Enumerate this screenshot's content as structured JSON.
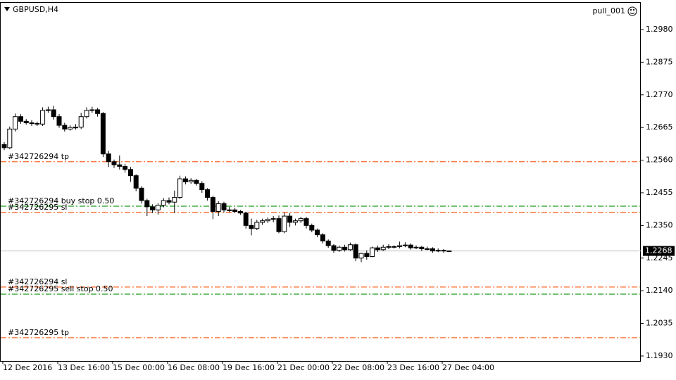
{
  "chart_data": {
    "type": "candlestick",
    "title": "GBPUSD,H4",
    "expert": "pull_001",
    "categories": [
      "12 Dec 2016",
      null,
      null,
      null,
      null,
      null,
      null,
      null,
      null,
      null,
      "13 Dec 16:00",
      null,
      null,
      null,
      null,
      null,
      null,
      null,
      null,
      null,
      "15 Dec 00:00",
      null,
      null,
      null,
      null,
      null,
      null,
      null,
      null,
      null,
      "16 Dec 08:00",
      null,
      null,
      null,
      null,
      null,
      null,
      null,
      null,
      null,
      "19 Dec 16:00",
      null,
      null,
      null,
      null,
      null,
      null,
      null,
      null,
      null,
      "21 Dec 00:00",
      null,
      null,
      null,
      null,
      null,
      null,
      null,
      null,
      null,
      "22 Dec 08:00",
      null,
      null,
      null,
      null,
      null,
      null,
      null,
      null,
      null,
      "23 Dec 16:00",
      null,
      null,
      null,
      null,
      null,
      null,
      null,
      null,
      null,
      "27 Dec 04:00",
      null
    ],
    "open": [
      1.261,
      1.26,
      1.266,
      1.27,
      1.2685,
      1.268,
      1.2678,
      1.2676,
      1.272,
      1.2722,
      1.27,
      1.2672,
      1.266,
      1.2665,
      1.2666,
      1.27,
      1.272,
      1.2722,
      1.271,
      1.258,
      1.2555,
      1.2545,
      1.254,
      1.253,
      1.251,
      1.247,
      1.243,
      1.241,
      1.24,
      1.2415,
      1.243,
      1.2425,
      1.244,
      1.25,
      1.249,
      1.2495,
      1.2485,
      1.2465,
      1.244,
      1.2395,
      1.242,
      1.24,
      1.24,
      1.2395,
      1.239,
      1.235,
      1.234,
      1.236,
      1.2365,
      1.237,
      1.2372,
      1.233,
      1.238,
      1.236,
      1.2365,
      1.2372,
      1.235,
      1.2335,
      1.232,
      1.23,
      1.2285,
      1.227,
      1.228,
      1.2272,
      1.2288,
      1.2245,
      1.226,
      1.225,
      1.2278,
      1.2272,
      1.228,
      1.2282,
      1.2282,
      1.2285,
      1.2287,
      1.2278,
      1.228,
      1.2275,
      1.2275,
      1.2268,
      1.227,
      1.2268
    ],
    "high": [
      1.2618,
      1.2668,
      1.271,
      1.2708,
      1.2692,
      1.2688,
      1.2684,
      1.273,
      1.2732,
      1.2735,
      1.2708,
      1.268,
      1.2672,
      1.2676,
      1.2712,
      1.273,
      1.2732,
      1.2728,
      1.2715,
      1.259,
      1.2562,
      1.2575,
      1.2548,
      1.2538,
      1.2515,
      1.2476,
      1.2436,
      1.2418,
      1.2422,
      1.2438,
      1.244,
      1.2462,
      1.251,
      1.2508,
      1.2502,
      1.25,
      1.2492,
      1.247,
      1.2446,
      1.2428,
      1.2426,
      1.241,
      1.2406,
      1.24,
      1.2394,
      1.2372,
      1.2368,
      1.2372,
      1.2376,
      1.238,
      1.2382,
      1.2392,
      1.239,
      1.2372,
      1.2378,
      1.2378,
      1.2356,
      1.234,
      1.2325,
      1.2305,
      1.229,
      1.2285,
      1.2288,
      1.2295,
      1.2292,
      1.2262,
      1.227,
      1.2282,
      1.2285,
      1.2288,
      1.229,
      1.2286,
      1.2298,
      1.2296,
      1.2292,
      1.2286,
      1.2284,
      1.2282,
      1.228,
      1.2276,
      1.2274,
      1.227
    ],
    "low": [
      1.2592,
      1.2595,
      1.2652,
      1.2677,
      1.2674,
      1.267,
      1.267,
      1.267,
      1.2712,
      1.269,
      1.2664,
      1.2652,
      1.2655,
      1.2658,
      1.266,
      1.2694,
      1.2712,
      1.27,
      1.257,
      1.2538,
      1.2535,
      1.253,
      1.252,
      1.249,
      1.246,
      1.242,
      1.238,
      1.239,
      1.2385,
      1.2408,
      1.2418,
      1.239,
      1.2435,
      1.2482,
      1.2484,
      1.2478,
      1.2455,
      1.243,
      1.237,
      1.238,
      1.2392,
      1.2392,
      1.239,
      1.2384,
      1.234,
      1.2318,
      1.2335,
      1.2352,
      1.2358,
      1.236,
      1.2325,
      1.2325,
      1.2345,
      1.235,
      1.2358,
      1.234,
      1.2328,
      1.2312,
      1.2292,
      1.2278,
      1.2262,
      1.2265,
      1.2266,
      1.2268,
      1.2235,
      1.2232,
      1.224,
      1.2248,
      1.2265,
      1.2268,
      1.2274,
      1.2276,
      1.2276,
      1.228,
      1.2272,
      1.2274,
      1.2268,
      1.227,
      1.2262,
      1.2264,
      1.2262,
      1.2266
    ],
    "close": [
      1.26,
      1.266,
      1.27,
      1.2685,
      1.268,
      1.2678,
      1.2676,
      1.272,
      1.2722,
      1.27,
      1.2672,
      1.266,
      1.2665,
      1.2666,
      1.27,
      1.272,
      1.2722,
      1.271,
      1.258,
      1.2555,
      1.2545,
      1.254,
      1.253,
      1.251,
      1.247,
      1.243,
      1.241,
      1.24,
      1.2415,
      1.243,
      1.2425,
      1.244,
      1.25,
      1.249,
      1.2495,
      1.2485,
      1.2465,
      1.244,
      1.2395,
      1.242,
      1.24,
      1.24,
      1.2395,
      1.239,
      1.235,
      1.234,
      1.236,
      1.2365,
      1.237,
      1.2372,
      1.233,
      1.238,
      1.236,
      1.2365,
      1.2372,
      1.235,
      1.2335,
      1.232,
      1.23,
      1.2285,
      1.227,
      1.228,
      1.2272,
      1.2288,
      1.2245,
      1.226,
      1.225,
      1.2278,
      1.2272,
      1.228,
      1.2282,
      1.2282,
      1.2285,
      1.2287,
      1.2278,
      1.228,
      1.2275,
      1.2275,
      1.2268,
      1.227,
      1.2268,
      1.2268
    ],
    "up_color": "#ffffff",
    "down_color": "#000000",
    "ylim": [
      1.1914,
      1.3066
    ],
    "yticks": [
      {
        "value": 1.298,
        "label": "1.2980"
      },
      1.2875,
      {
        "value": 1.277,
        "label": "1.2770"
      },
      1.2665,
      {
        "value": 1.256,
        "label": "1.2560"
      },
      1.2455,
      {
        "value": 1.235,
        "label": "1.2350"
      },
      1.2245,
      {
        "value": 1.214,
        "label": "1.2140"
      },
      1.2035,
      {
        "value": 1.193,
        "label": "1.1930"
      }
    ],
    "current_price": 1.2268,
    "orders": [
      {
        "label": "#342726294 tp",
        "price": 1.2555,
        "color": "#ff6a2a"
      },
      {
        "label": "#342726294 buy stop 0.50",
        "price": 1.2412,
        "color": "#1a9c1a"
      },
      {
        "label": "#342726295 sl",
        "price": 1.2392,
        "color": "#ff6a2a"
      },
      {
        "label": "#342726294 sl",
        "price": 1.2152,
        "color": "#ff6a2a"
      },
      {
        "label": "#342726295 sell stop 0.50",
        "price": 1.2129,
        "color": "#1a9c1a"
      },
      {
        "label": "#342726295 tp",
        "price": 1.1989,
        "color": "#ff6a2a"
      }
    ]
  }
}
